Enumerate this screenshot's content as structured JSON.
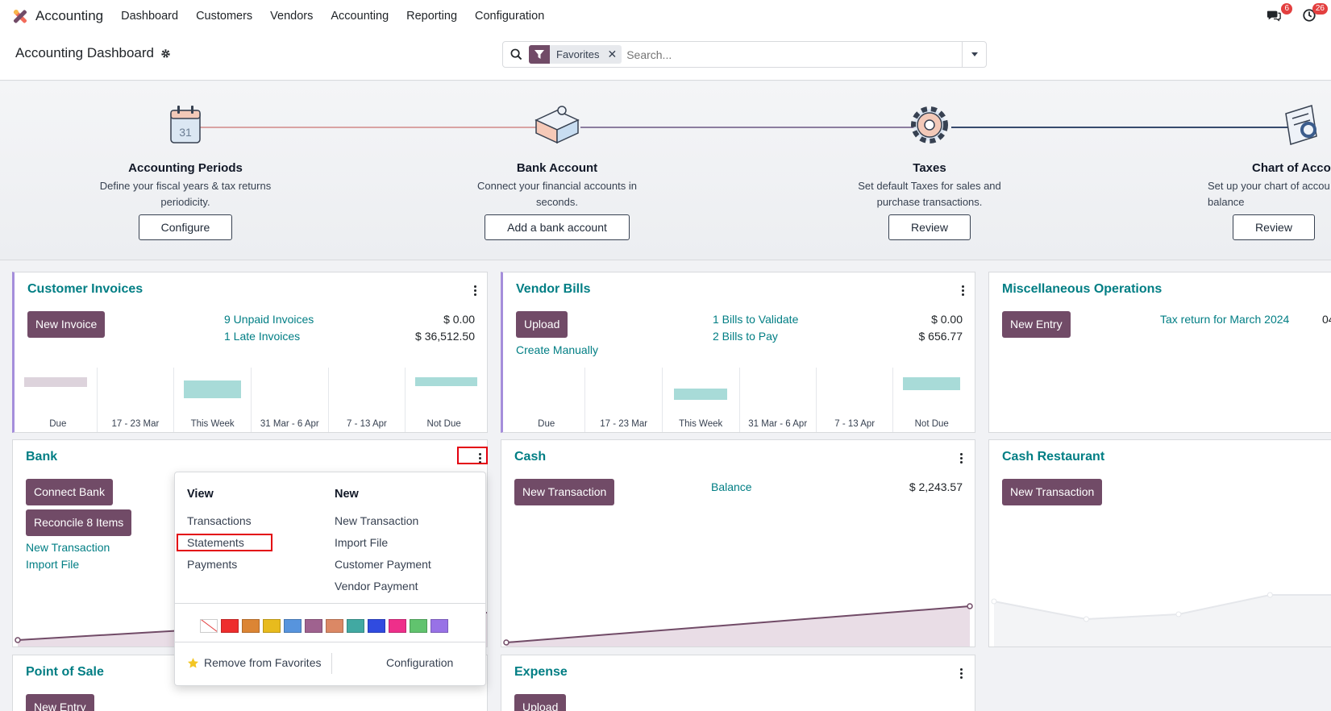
{
  "nav": {
    "app_name": "Accounting",
    "menu": [
      "Dashboard",
      "Customers",
      "Vendors",
      "Accounting",
      "Reporting",
      "Configuration"
    ],
    "messages_badge": "6",
    "activities_badge": "26",
    "messages_icon": "chat-icon",
    "activities_icon": "clock-icon"
  },
  "control_panel": {
    "title": "Accounting Dashboard",
    "facet_label": "Favorites",
    "search_placeholder": "Search..."
  },
  "onboarding": [
    {
      "title": "Accounting Periods",
      "desc": "Define your fiscal years & tax returns periodicity.",
      "button": "Configure"
    },
    {
      "title": "Bank Account",
      "desc": "Connect your financial accounts in seconds.",
      "button": "Add a bank account"
    },
    {
      "title": "Taxes",
      "desc": "Set default Taxes for sales and purchase transactions.",
      "button": "Review"
    },
    {
      "title": "Chart of Accou",
      "desc": "Set up your chart of accou initial balance",
      "button": "Review"
    }
  ],
  "journals": {
    "customer_invoices": {
      "title": "Customer Invoices",
      "button": "New Invoice",
      "links": [
        "9 Unpaid Invoices",
        "1 Late Invoices"
      ],
      "amounts": [
        "$ 0.00",
        "$ 36,512.50"
      ],
      "bar_labels": [
        "Due",
        "17 - 23 Mar",
        "This Week",
        "31 Mar - 6 Apr",
        "7 - 13 Apr",
        "Not Due"
      ]
    },
    "vendor_bills": {
      "title": "Vendor Bills",
      "button": "Upload",
      "create_manually": "Create Manually",
      "links": [
        "1 Bills to Validate",
        "2 Bills to Pay"
      ],
      "amounts": [
        "$ 0.00",
        "$ 656.77"
      ],
      "bar_labels": [
        "Due",
        "17 - 23 Mar",
        "This Week",
        "31 Mar - 6 Apr",
        "7 - 13 Apr",
        "Not Due"
      ]
    },
    "misc": {
      "title": "Miscellaneous Operations",
      "button": "New Entry",
      "link": "Tax return for March 2024",
      "amount": "04"
    },
    "bank": {
      "title": "Bank",
      "button1": "Connect Bank",
      "button2": "Reconcile 8 Items",
      "links": [
        "New Transaction",
        "Import File"
      ]
    },
    "cash": {
      "title": "Cash",
      "button": "New Transaction",
      "link": "Balance",
      "amount": "$ 2,243.57"
    },
    "cash_restaurant": {
      "title": "Cash Restaurant",
      "button": "New Transaction"
    },
    "pos": {
      "title": "Point of Sale",
      "button": "New Entry"
    },
    "expense": {
      "title": "Expense",
      "button": "Upload"
    }
  },
  "dropdown": {
    "view_header": "View",
    "view_items": [
      "Transactions",
      "Statements",
      "Payments"
    ],
    "new_header": "New",
    "new_items": [
      "New Transaction",
      "Import File",
      "Customer Payment",
      "Vendor Payment"
    ],
    "colors": [
      "#ffffff",
      "#ee2d2d",
      "#dc8534",
      "#e8bb1d",
      "#5794dd",
      "#9f628f",
      "#db8865",
      "#41a9a2",
      "#304be0",
      "#ee2f8a",
      "#61c36e",
      "#9872e6"
    ],
    "remove_favorites": "Remove from Favorites",
    "configuration": "Configuration"
  }
}
